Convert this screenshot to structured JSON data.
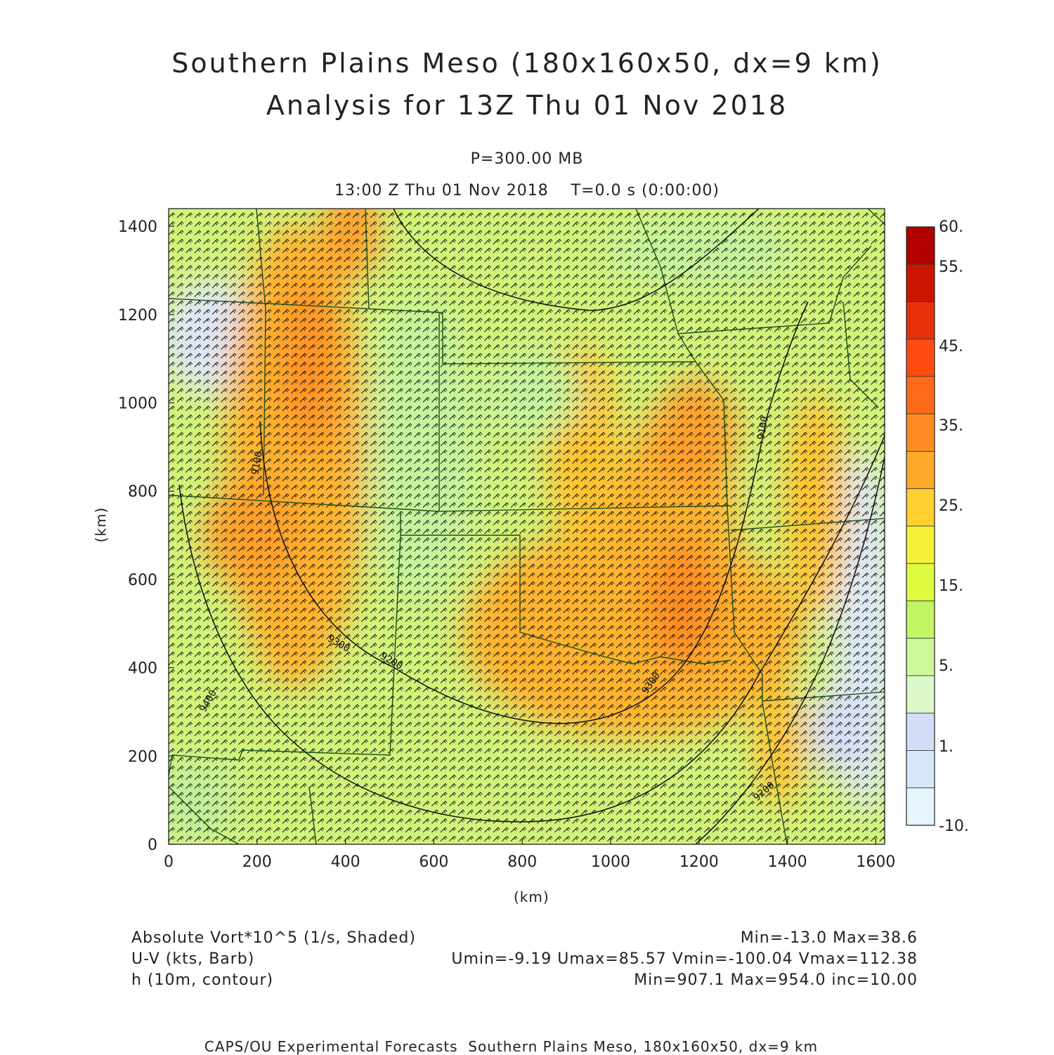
{
  "title": {
    "line1": "Southern Plains Meso (180x160x50, dx=9 km)",
    "line2": "Analysis for 13Z Thu 01 Nov 2018"
  },
  "level": "P=300.00 MB",
  "valid_time": "13:00 Z Thu 01 Nov 2018    T=0.0 s (0:00:00)",
  "axes": {
    "x_label": "(km)",
    "y_label": "(km)",
    "x_ticks": [
      "0",
      "200",
      "400",
      "600",
      "800",
      "1000",
      "1200",
      "1400",
      "1600"
    ],
    "y_ticks": [
      "0",
      "200",
      "400",
      "600",
      "800",
      "1000",
      "1200",
      "1400"
    ],
    "x_range": [
      0,
      1620
    ],
    "y_range": [
      0,
      1440
    ]
  },
  "colorbar": {
    "labels": [
      "60.",
      "55.",
      "45.",
      "35.",
      "25.",
      "15.",
      "5.",
      "1.",
      "-10."
    ],
    "colors": [
      "#b30000",
      "#cc1500",
      "#e8300a",
      "#ff4a10",
      "#ff6a1a",
      "#ff8c22",
      "#ffa92b",
      "#ffd030",
      "#f5f03a",
      "#e0fa40",
      "#c2f565",
      "#cdf89a",
      "#dcf8c8",
      "#d4ddf8",
      "#d6e8f8",
      "#e6f4fc"
    ]
  },
  "contour_labels": [
    "9100",
    "9100",
    "9200",
    "9200",
    "9300",
    "9300",
    "9400"
  ],
  "fields": {
    "shaded": "Absolute Vort*10^5 (1/s, Shaded)",
    "shaded_stats": "Min=-13.0 Max=38.6",
    "barb": "U-V (kts, Barb)",
    "barb_stats": "Umin=-9.19 Umax=85.57 Vmin=-100.04 Vmax=112.38",
    "contour": "h (10m, contour)",
    "contour_stats": "Min=907.1 Max=954.0 inc=10.00"
  },
  "credit": "CAPS/OU Experimental Forecasts  Southern Plains Meso, 180x160x50, dx=9 km"
}
